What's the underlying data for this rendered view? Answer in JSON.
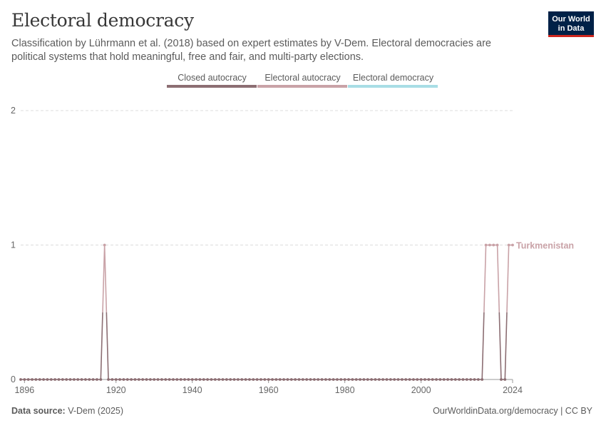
{
  "header": {
    "title": "Electoral democracy",
    "subtitle": "Classification by Lührmann et al. (2018) based on expert estimates by V-Dem. Electoral democracies are political systems that hold meaningful, free and fair, and multi-party elections."
  },
  "logo": {
    "line1": "Our World",
    "line2": "in Data"
  },
  "legend": {
    "items": [
      {
        "label": "Closed autocracy",
        "color": "#8c6e73"
      },
      {
        "label": "Electoral autocracy",
        "color": "#c9a2a7"
      },
      {
        "label": "Electoral democracy",
        "color": "#a8dde5"
      }
    ]
  },
  "footer": {
    "source_label": "Data source:",
    "source_value": "V-Dem (2025)",
    "link": "OurWorldinData.org/democracy | CC BY"
  },
  "chart_data": {
    "type": "line",
    "title": "Electoral democracy",
    "xlim": [
      1895,
      2024
    ],
    "ylim": [
      0,
      2
    ],
    "yticks": [
      "0",
      "1",
      "2"
    ],
    "xticks": [
      "1896",
      "1920",
      "1940",
      "1960",
      "1980",
      "2000",
      "2024"
    ],
    "grid": "horizontal-dashed",
    "series": [
      {
        "name": "Turkmenistan",
        "color": "#c9a2a7",
        "low_color": "#8c6e73",
        "x": [
          1895,
          1896,
          1897,
          1898,
          1899,
          1900,
          1901,
          1902,
          1903,
          1904,
          1905,
          1906,
          1907,
          1908,
          1909,
          1910,
          1911,
          1912,
          1913,
          1914,
          1915,
          1916,
          1917,
          1918,
          1919,
          1920,
          1921,
          1922,
          1923,
          1924,
          1925,
          1926,
          1927,
          1928,
          1929,
          1930,
          1931,
          1932,
          1933,
          1934,
          1935,
          1936,
          1937,
          1938,
          1939,
          1940,
          1941,
          1942,
          1943,
          1944,
          1945,
          1946,
          1947,
          1948,
          1949,
          1950,
          1951,
          1952,
          1953,
          1954,
          1955,
          1956,
          1957,
          1958,
          1959,
          1960,
          1961,
          1962,
          1963,
          1964,
          1965,
          1966,
          1967,
          1968,
          1969,
          1970,
          1971,
          1972,
          1973,
          1974,
          1975,
          1976,
          1977,
          1978,
          1979,
          1980,
          1981,
          1982,
          1983,
          1984,
          1985,
          1986,
          1987,
          1988,
          1989,
          1990,
          1991,
          1992,
          1993,
          1994,
          1995,
          1996,
          1997,
          1998,
          1999,
          2000,
          2001,
          2002,
          2003,
          2004,
          2005,
          2006,
          2007,
          2008,
          2009,
          2010,
          2011,
          2012,
          2013,
          2014,
          2015,
          2016,
          2017,
          2018,
          2019,
          2020,
          2021,
          2022,
          2023,
          2024
        ],
        "y": [
          0,
          0,
          0,
          0,
          0,
          0,
          0,
          0,
          0,
          0,
          0,
          0,
          0,
          0,
          0,
          0,
          0,
          0,
          0,
          0,
          0,
          0,
          1,
          0,
          0,
          0,
          0,
          0,
          0,
          0,
          0,
          0,
          0,
          0,
          0,
          0,
          0,
          0,
          0,
          0,
          0,
          0,
          0,
          0,
          0,
          0,
          0,
          0,
          0,
          0,
          0,
          0,
          0,
          0,
          0,
          0,
          0,
          0,
          0,
          0,
          0,
          0,
          0,
          0,
          0,
          0,
          0,
          0,
          0,
          0,
          0,
          0,
          0,
          0,
          0,
          0,
          0,
          0,
          0,
          0,
          0,
          0,
          0,
          0,
          0,
          0,
          0,
          0,
          0,
          0,
          0,
          0,
          0,
          0,
          0,
          0,
          0,
          0,
          0,
          0,
          0,
          0,
          0,
          0,
          0,
          0,
          0,
          0,
          0,
          0,
          0,
          0,
          0,
          0,
          0,
          0,
          0,
          0,
          0,
          0,
          0,
          0,
          1,
          1,
          1,
          1,
          0,
          0,
          1,
          1
        ]
      }
    ]
  }
}
